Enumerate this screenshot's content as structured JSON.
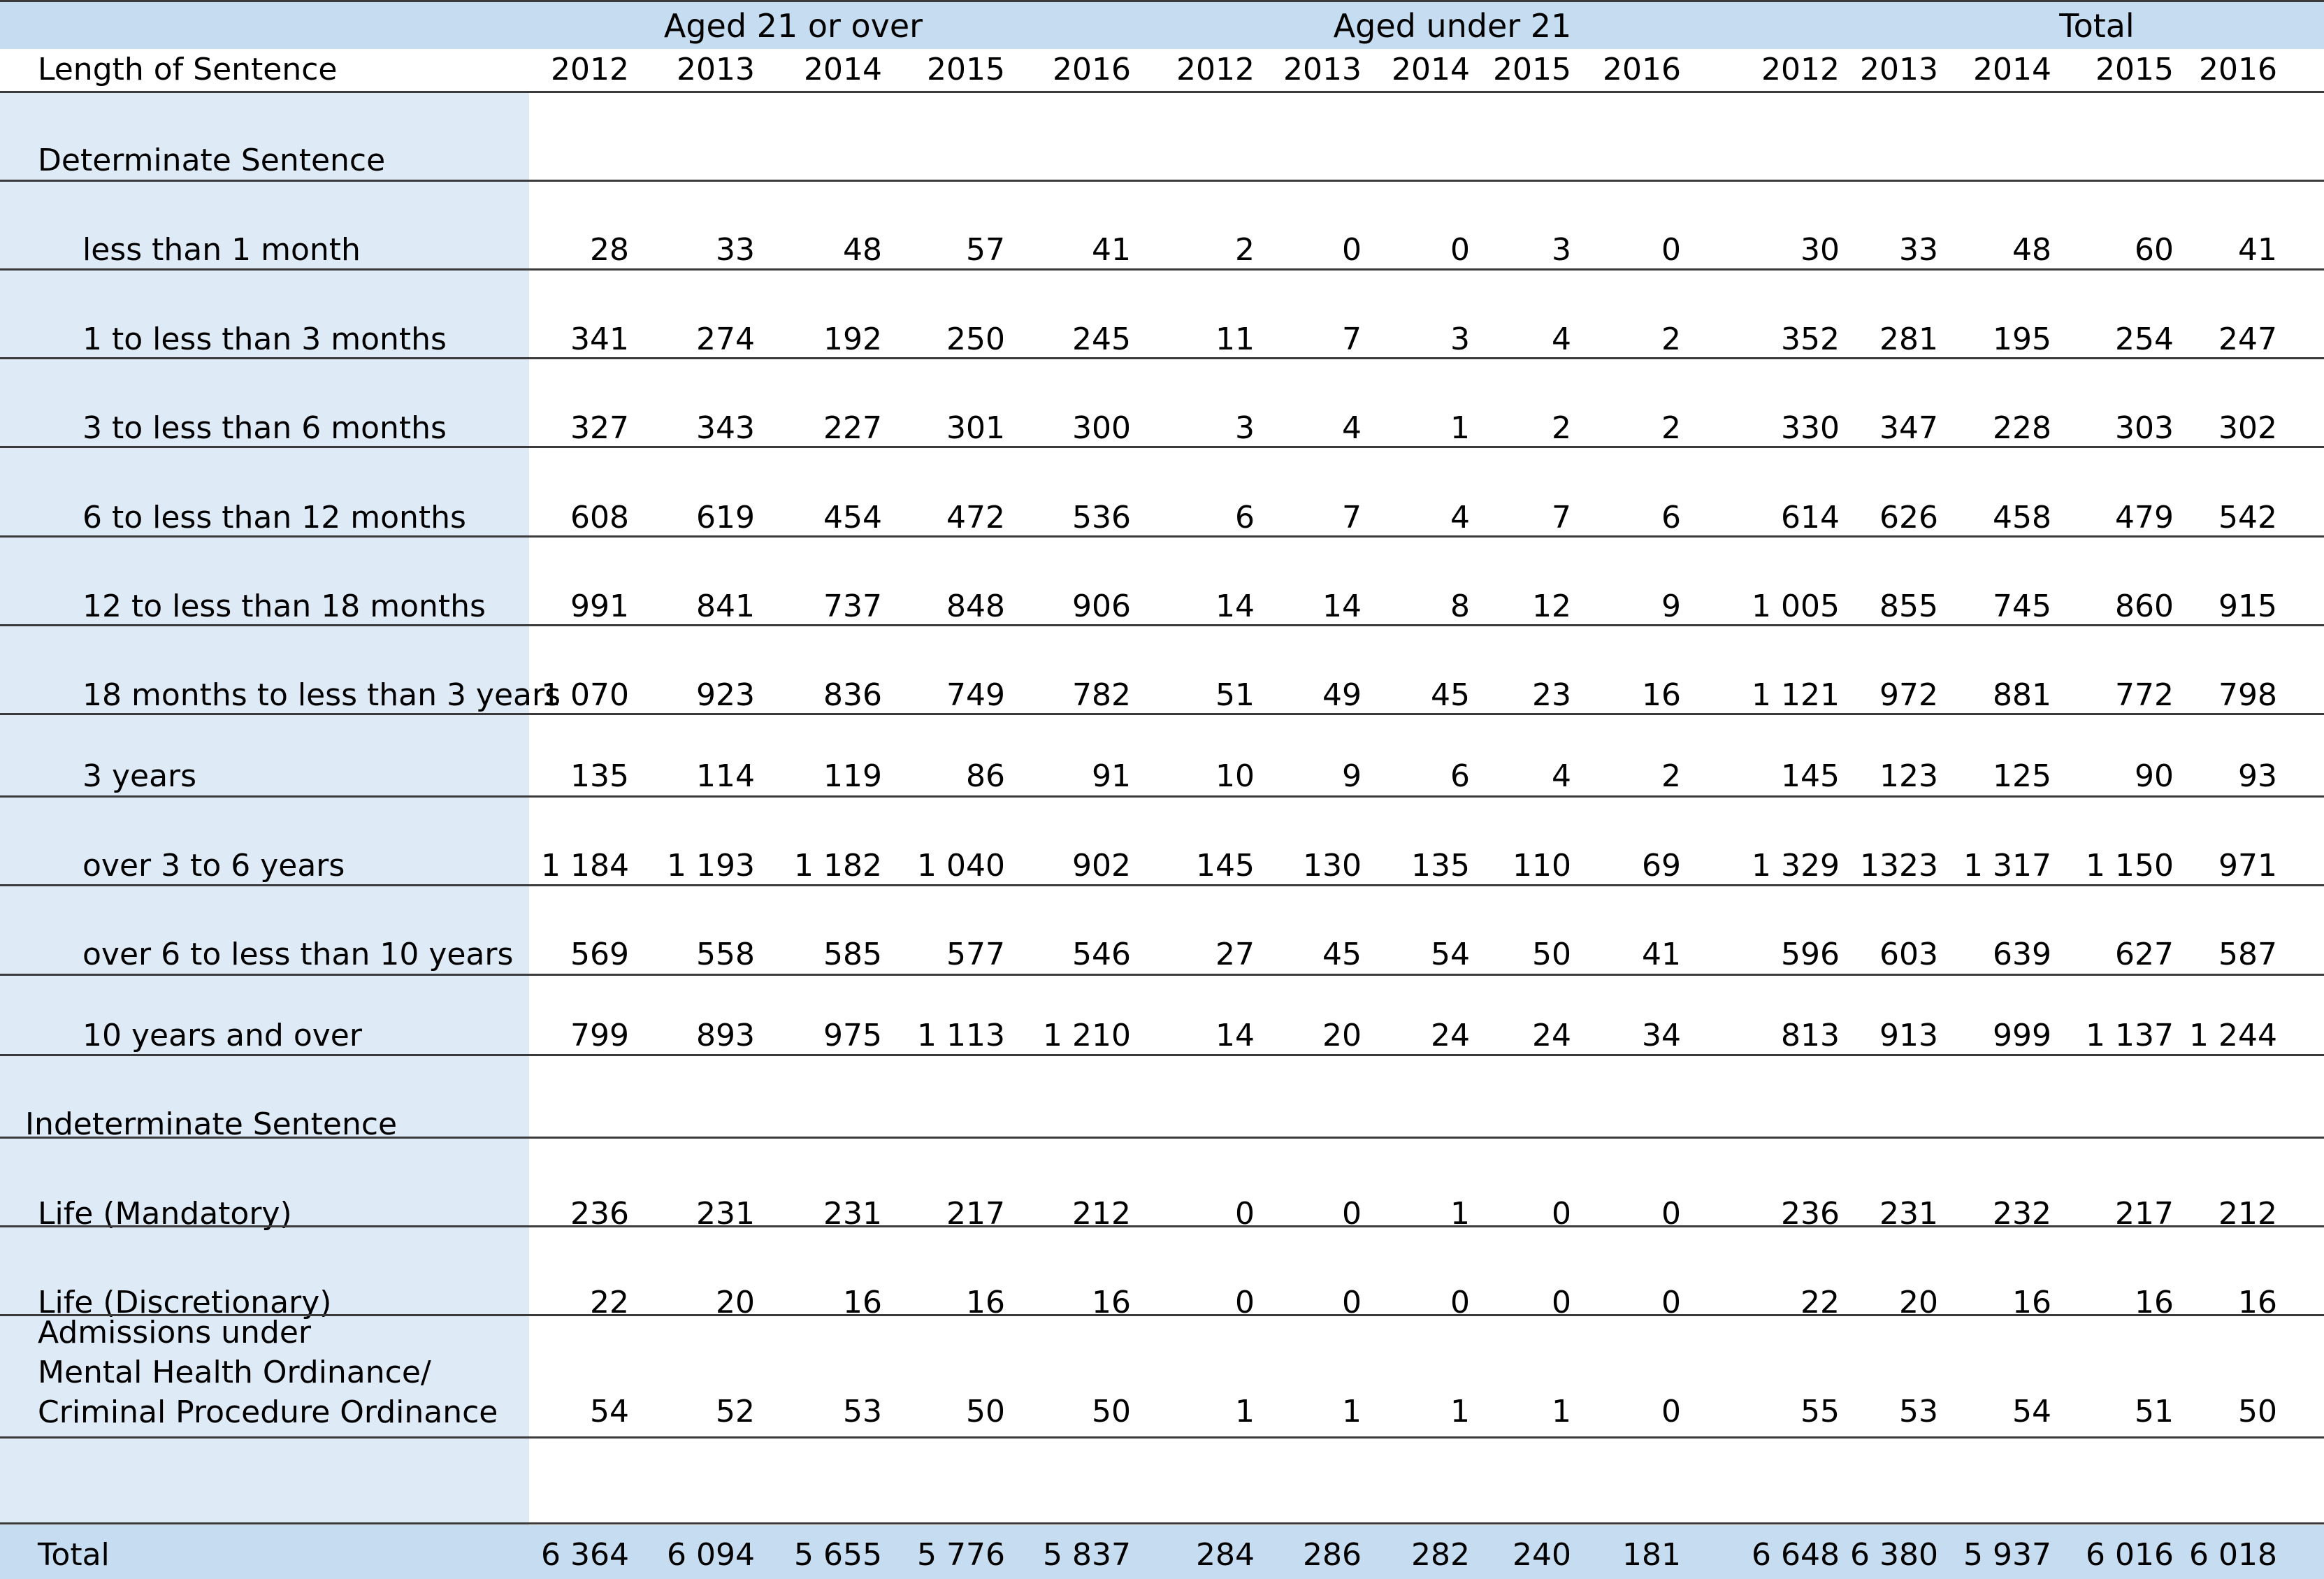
{
  "header": {
    "groups": [
      "Aged 21 or over",
      "Aged under 21",
      "Total"
    ],
    "label_header": "Length of Sentence",
    "years": [
      "2012",
      "2013",
      "2014",
      "2015",
      "2016"
    ]
  },
  "rows": [
    {
      "kind": "section",
      "label": "Determinate Sentence"
    },
    {
      "kind": "data",
      "label": "less than 1 month",
      "values": [
        "28",
        "33",
        "48",
        "57",
        "41",
        "2",
        "0",
        "0",
        "3",
        "0",
        "30",
        "33",
        "48",
        "60",
        "41"
      ]
    },
    {
      "kind": "data",
      "label": "1 to less than 3 months",
      "values": [
        "341",
        "274",
        "192",
        "250",
        "245",
        "11",
        "7",
        "3",
        "4",
        "2",
        "352",
        "281",
        "195",
        "254",
        "247"
      ]
    },
    {
      "kind": "data",
      "label": "3 to less than 6 months",
      "values": [
        "327",
        "343",
        "227",
        "301",
        "300",
        "3",
        "4",
        "1",
        "2",
        "2",
        "330",
        "347",
        "228",
        "303",
        "302"
      ]
    },
    {
      "kind": "data",
      "label": "6 to less than 12 months",
      "values": [
        "608",
        "619",
        "454",
        "472",
        "536",
        "6",
        "7",
        "4",
        "7",
        "6",
        "614",
        "626",
        "458",
        "479",
        "542"
      ]
    },
    {
      "kind": "data",
      "label": "12 to less than 18 months",
      "values": [
        "991",
        "841",
        "737",
        "848",
        "906",
        "14",
        "14",
        "8",
        "12",
        "9",
        "1 005",
        "855",
        "745",
        "860",
        "915"
      ]
    },
    {
      "kind": "data",
      "label": "18 months to less than 3 years",
      "values": [
        "1 070",
        "923",
        "836",
        "749",
        "782",
        "51",
        "49",
        "45",
        "23",
        "16",
        "1 121",
        "972",
        "881",
        "772",
        "798"
      ]
    },
    {
      "kind": "data",
      "label": "3 years",
      "values": [
        "135",
        "114",
        "119",
        "86",
        "91",
        "10",
        "9",
        "6",
        "4",
        "2",
        "145",
        "123",
        "125",
        "90",
        "93"
      ]
    },
    {
      "kind": "data",
      "label": "over 3 to 6 years",
      "values": [
        "1 184",
        "1 193",
        "1 182",
        "1 040",
        "902",
        "145",
        "130",
        "135",
        "110",
        "69",
        "1 329",
        "1323",
        "1 317",
        "1 150",
        "971"
      ]
    },
    {
      "kind": "data",
      "label": "over 6 to less than 10 years",
      "values": [
        "569",
        "558",
        "585",
        "577",
        "546",
        "27",
        "45",
        "54",
        "50",
        "41",
        "596",
        "603",
        "639",
        "627",
        "587"
      ]
    },
    {
      "kind": "data",
      "label": "10 years and over",
      "values": [
        "799",
        "893",
        "975",
        "1 113",
        "1 210",
        "14",
        "20",
        "24",
        "24",
        "34",
        "813",
        "913",
        "999",
        "1 137",
        "1 244"
      ]
    },
    {
      "kind": "section",
      "label": "Indeterminate Sentence"
    },
    {
      "kind": "data",
      "label": "Life (Mandatory)",
      "values": [
        "236",
        "231",
        "231",
        "217",
        "212",
        "0",
        "0",
        "1",
        "0",
        "0",
        "236",
        "231",
        "232",
        "217",
        "212"
      ]
    },
    {
      "kind": "data",
      "label": "Life (Discretionary)",
      "values": [
        "22",
        "20",
        "16",
        "16",
        "16",
        "0",
        "0",
        "0",
        "0",
        "0",
        "22",
        "20",
        "16",
        "16",
        "16"
      ]
    },
    {
      "kind": "data",
      "label_lines": [
        "Admissions under",
        "Mental Health Ordinance/",
        "Criminal Procedure Ordinance"
      ],
      "values": [
        "54",
        "52",
        "53",
        "50",
        "50",
        "1",
        "1",
        "1",
        "1",
        "0",
        "55",
        "53",
        "54",
        "51",
        "50"
      ]
    }
  ],
  "total": {
    "label": "Total",
    "values": [
      "6 364",
      "6 094",
      "5 655",
      "5 776",
      "5 837",
      "284",
      "286",
      "282",
      "240",
      "181",
      "6 648",
      "6 380",
      "5 937",
      "6 016",
      "6 018"
    ]
  }
}
